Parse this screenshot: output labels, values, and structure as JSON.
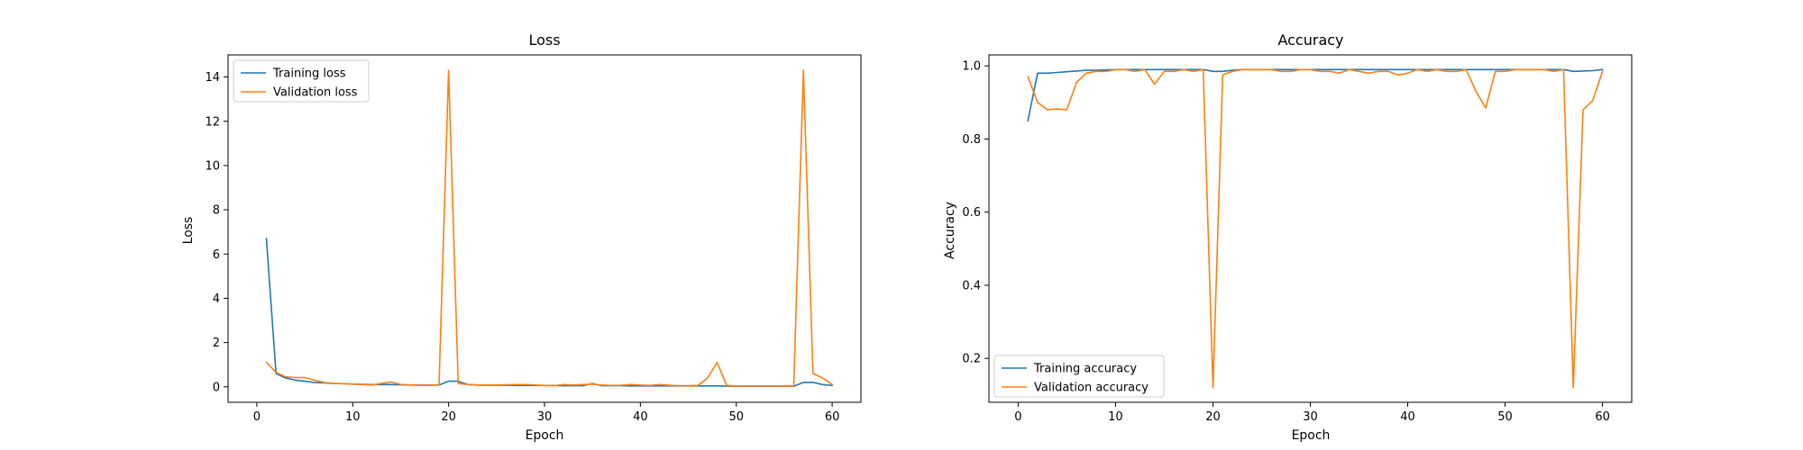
{
  "figure": {
    "charts": [
      {
        "title": "Loss",
        "xlabel": "Epoch",
        "ylabel": "Loss"
      },
      {
        "title": "Accuracy",
        "xlabel": "Epoch",
        "ylabel": "Accuracy"
      }
    ]
  },
  "chart_data": [
    {
      "type": "line",
      "title": "Loss",
      "xlabel": "Epoch",
      "ylabel": "Loss",
      "xlim": [
        -3,
        63
      ],
      "ylim": [
        -0.7,
        15.0
      ],
      "xticks": [
        0,
        10,
        20,
        30,
        40,
        50,
        60
      ],
      "yticks": [
        0,
        2,
        4,
        6,
        8,
        10,
        12,
        14
      ],
      "legend_position": "top-left",
      "grid": false,
      "x": [
        1,
        2,
        3,
        4,
        5,
        6,
        7,
        8,
        9,
        10,
        11,
        12,
        13,
        14,
        15,
        16,
        17,
        18,
        19,
        20,
        21,
        22,
        23,
        24,
        25,
        26,
        27,
        28,
        29,
        30,
        31,
        32,
        33,
        34,
        35,
        36,
        37,
        38,
        39,
        40,
        41,
        42,
        43,
        44,
        45,
        46,
        47,
        48,
        49,
        50,
        51,
        52,
        53,
        54,
        55,
        56,
        57,
        58,
        59,
        60
      ],
      "series": [
        {
          "name": "Training loss",
          "color": "#1f77b4",
          "values": [
            6.7,
            0.6,
            0.4,
            0.3,
            0.25,
            0.2,
            0.18,
            0.15,
            0.14,
            0.12,
            0.11,
            0.1,
            0.1,
            0.1,
            0.09,
            0.08,
            0.08,
            0.08,
            0.08,
            0.25,
            0.25,
            0.1,
            0.08,
            0.07,
            0.07,
            0.07,
            0.06,
            0.06,
            0.06,
            0.06,
            0.06,
            0.05,
            0.05,
            0.05,
            0.15,
            0.05,
            0.05,
            0.05,
            0.04,
            0.04,
            0.04,
            0.04,
            0.04,
            0.04,
            0.04,
            0.04,
            0.04,
            0.04,
            0.03,
            0.03,
            0.03,
            0.03,
            0.03,
            0.03,
            0.03,
            0.03,
            0.2,
            0.2,
            0.1,
            0.06
          ]
        },
        {
          "name": "Validation loss",
          "color": "#ff7f0e",
          "values": [
            1.1,
            0.65,
            0.45,
            0.42,
            0.42,
            0.3,
            0.2,
            0.15,
            0.14,
            0.12,
            0.1,
            0.08,
            0.15,
            0.22,
            0.1,
            0.08,
            0.07,
            0.07,
            0.08,
            14.3,
            0.15,
            0.1,
            0.08,
            0.07,
            0.08,
            0.09,
            0.1,
            0.1,
            0.08,
            0.06,
            0.05,
            0.1,
            0.08,
            0.1,
            0.12,
            0.08,
            0.06,
            0.07,
            0.1,
            0.08,
            0.06,
            0.1,
            0.07,
            0.05,
            0.05,
            0.06,
            0.4,
            1.1,
            0.06,
            0.04,
            0.04,
            0.04,
            0.04,
            0.04,
            0.04,
            0.04,
            14.3,
            0.6,
            0.4,
            0.1
          ]
        }
      ]
    },
    {
      "type": "line",
      "title": "Accuracy",
      "xlabel": "Epoch",
      "ylabel": "Accuracy",
      "xlim": [
        -3,
        63
      ],
      "ylim": [
        0.08,
        1.03
      ],
      "xticks": [
        0,
        10,
        20,
        30,
        40,
        50,
        60
      ],
      "yticks": [
        0.2,
        0.4,
        0.6,
        0.8,
        1.0
      ],
      "legend_position": "bottom-left",
      "grid": false,
      "x": [
        1,
        2,
        3,
        4,
        5,
        6,
        7,
        8,
        9,
        10,
        11,
        12,
        13,
        14,
        15,
        16,
        17,
        18,
        19,
        20,
        21,
        22,
        23,
        24,
        25,
        26,
        27,
        28,
        29,
        30,
        31,
        32,
        33,
        34,
        35,
        36,
        37,
        38,
        39,
        40,
        41,
        42,
        43,
        44,
        45,
        46,
        47,
        48,
        49,
        50,
        51,
        52,
        53,
        54,
        55,
        56,
        57,
        58,
        59,
        60
      ],
      "series": [
        {
          "name": "Training accuracy",
          "color": "#1f77b4",
          "values": [
            0.85,
            0.98,
            0.98,
            0.982,
            0.984,
            0.986,
            0.988,
            0.988,
            0.989,
            0.99,
            0.99,
            0.99,
            0.99,
            0.99,
            0.99,
            0.99,
            0.99,
            0.99,
            0.99,
            0.985,
            0.985,
            0.988,
            0.99,
            0.99,
            0.99,
            0.99,
            0.99,
            0.99,
            0.99,
            0.99,
            0.99,
            0.99,
            0.99,
            0.99,
            0.99,
            0.99,
            0.99,
            0.99,
            0.99,
            0.99,
            0.99,
            0.99,
            0.99,
            0.99,
            0.99,
            0.99,
            0.99,
            0.99,
            0.99,
            0.99,
            0.99,
            0.99,
            0.99,
            0.99,
            0.99,
            0.99,
            0.985,
            0.986,
            0.987,
            0.99
          ]
        },
        {
          "name": "Validation accuracy",
          "color": "#ff7f0e",
          "values": [
            0.97,
            0.9,
            0.88,
            0.882,
            0.88,
            0.955,
            0.98,
            0.985,
            0.985,
            0.99,
            0.99,
            0.985,
            0.99,
            0.95,
            0.985,
            0.985,
            0.99,
            0.985,
            0.99,
            0.12,
            0.975,
            0.985,
            0.99,
            0.99,
            0.99,
            0.99,
            0.985,
            0.985,
            0.99,
            0.99,
            0.985,
            0.985,
            0.98,
            0.99,
            0.985,
            0.98,
            0.985,
            0.985,
            0.975,
            0.98,
            0.99,
            0.985,
            0.99,
            0.985,
            0.985,
            0.99,
            0.93,
            0.885,
            0.985,
            0.985,
            0.99,
            0.99,
            0.99,
            0.99,
            0.985,
            0.99,
            0.12,
            0.88,
            0.905,
            0.985
          ]
        }
      ]
    }
  ]
}
